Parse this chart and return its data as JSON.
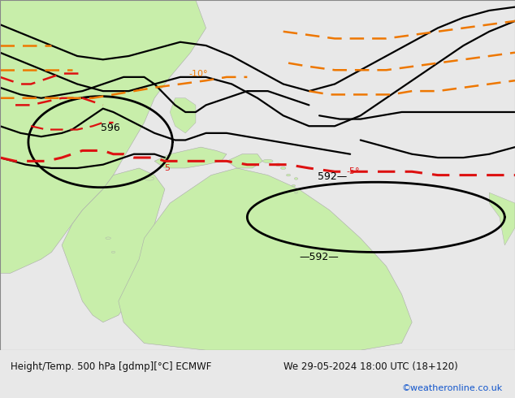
{
  "title_left": "Height/Temp. 500 hPa [gdmp][°C] ECMWF",
  "title_right": "We 29-05-2024 18:00 UTC (18+120)",
  "credit": "©weatheronline.co.uk",
  "bg_color": "#e8e8e8",
  "land_color": "#c8eeaa",
  "sea_color": "#e8e8e8",
  "coast_color": "#aaaaaa",
  "black": "#000000",
  "red": "#dd1111",
  "orange": "#ee7700",
  "text_black": "#111111",
  "text_blue": "#1155cc",
  "bottom_bg": "#f0f0f0",
  "fig_width": 6.34,
  "fig_height": 4.9,
  "dpi": 100
}
